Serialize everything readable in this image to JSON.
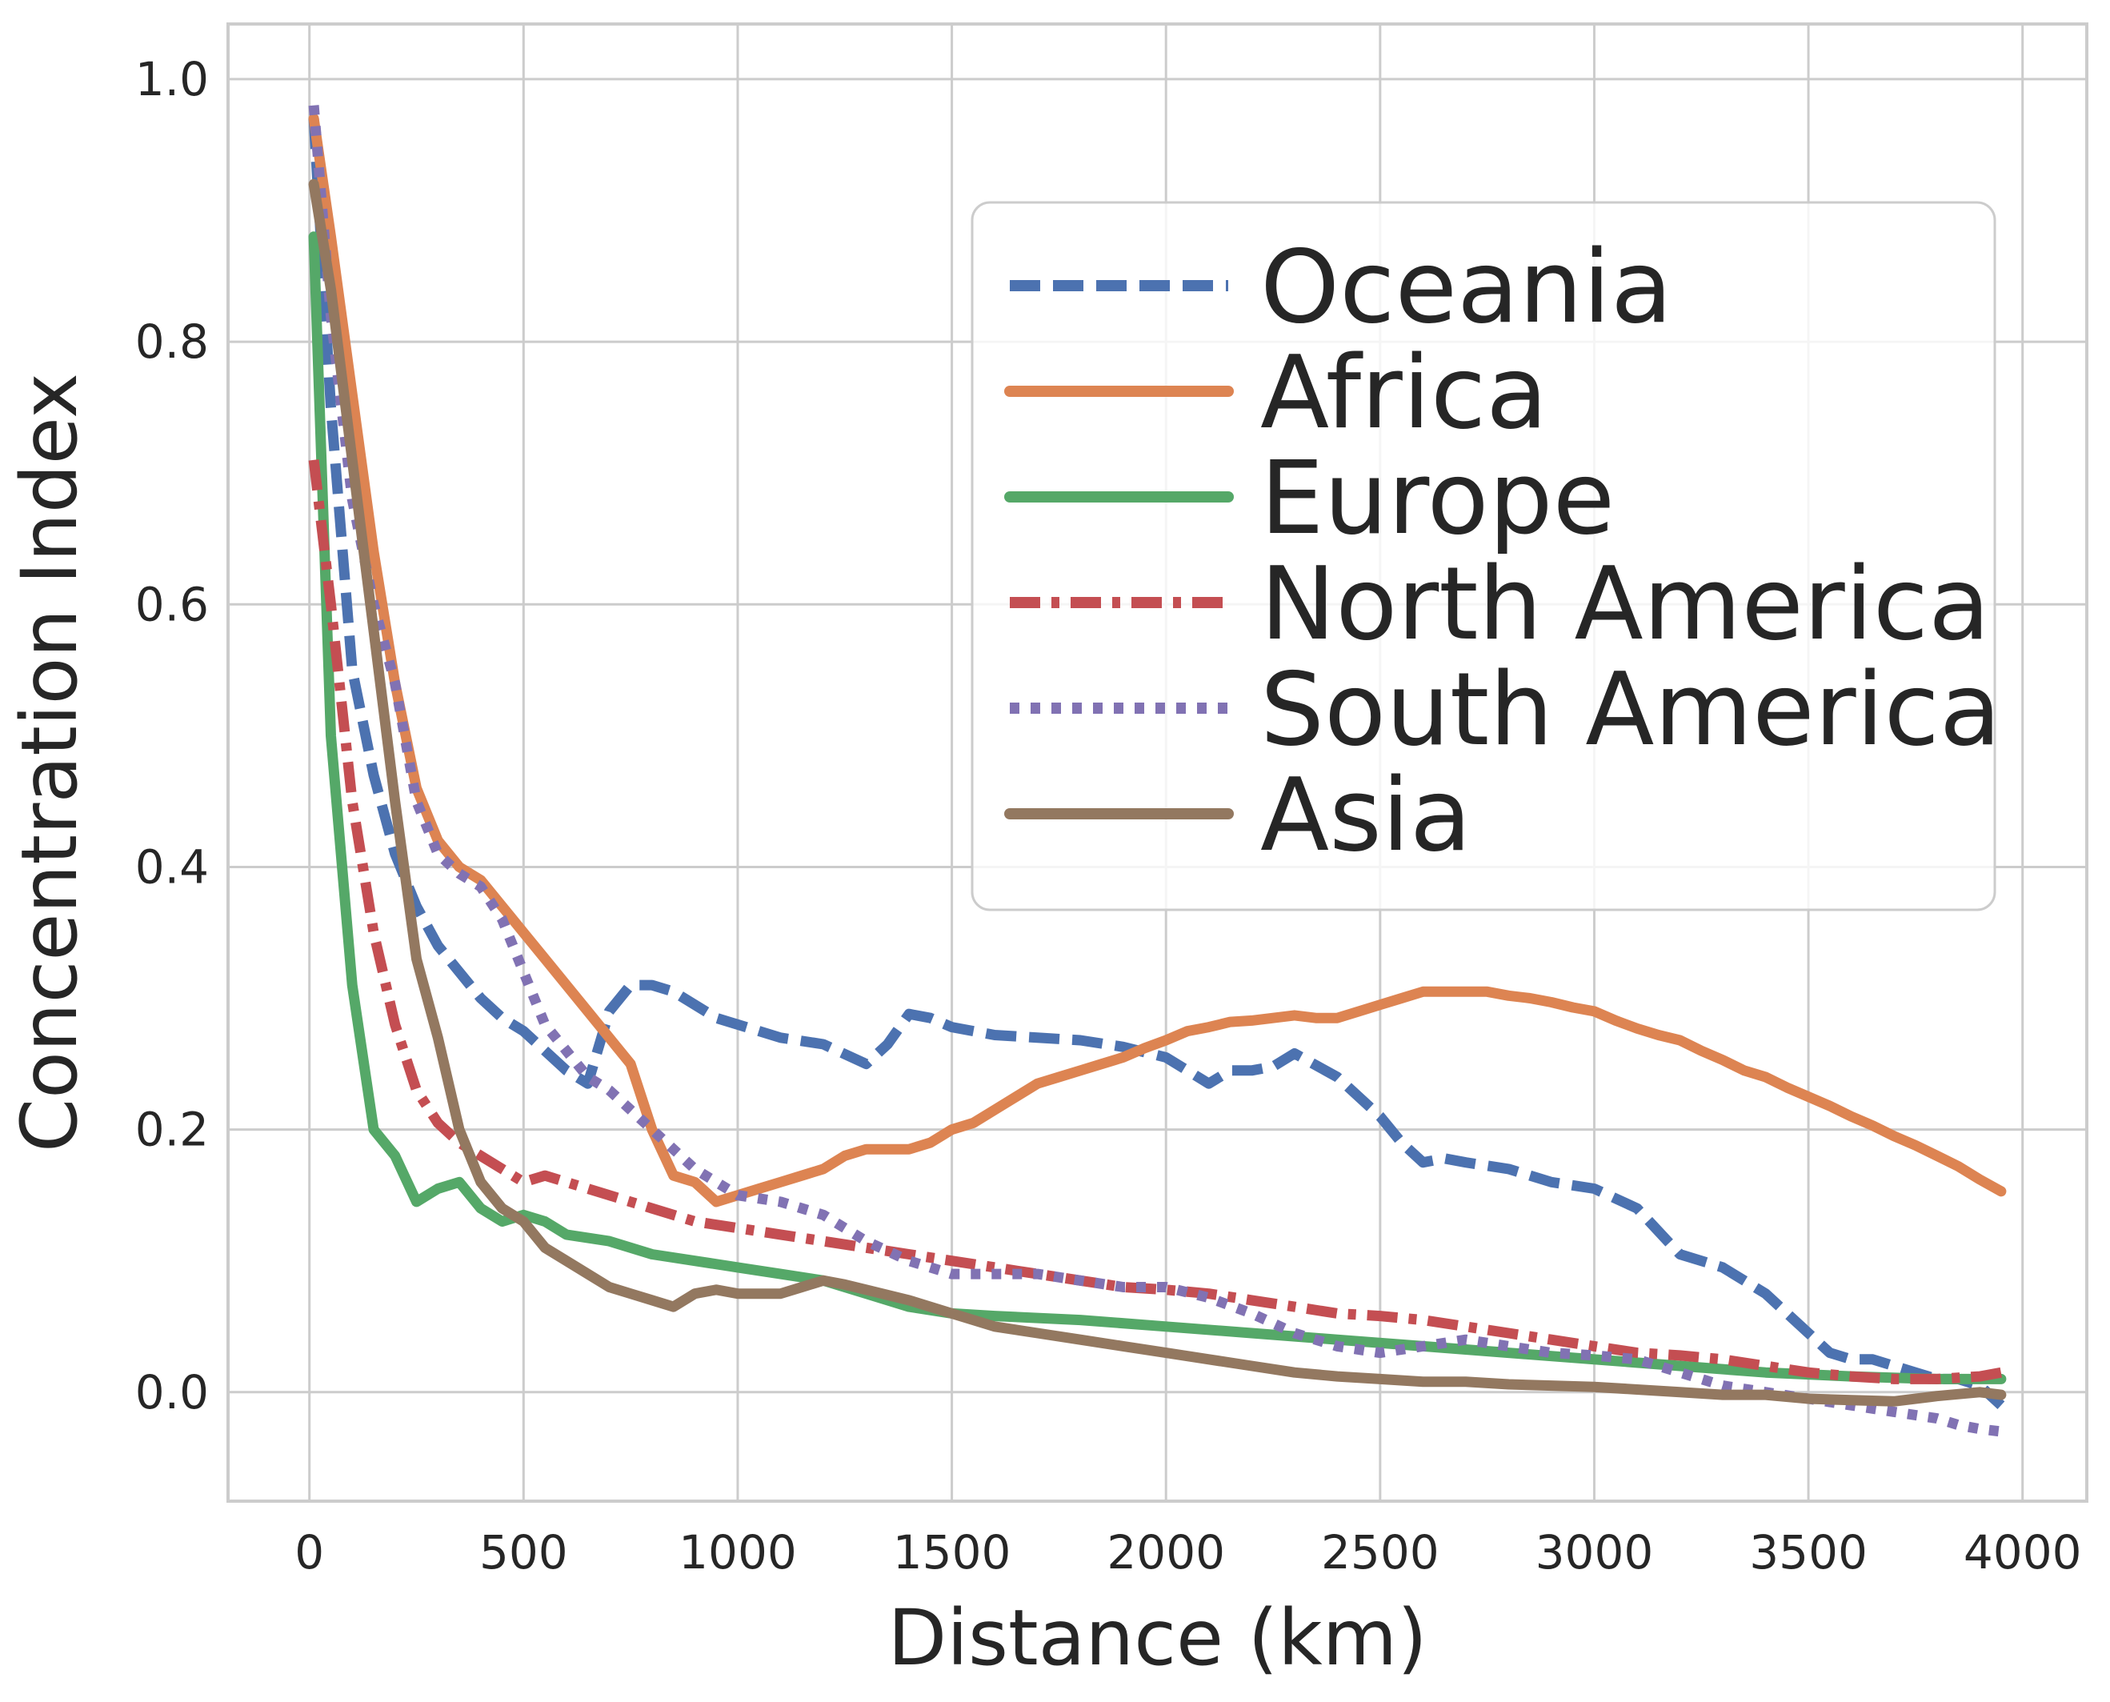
{
  "chart_data": {
    "type": "line",
    "title": "",
    "xlabel": "Distance (km)",
    "ylabel": "Concentration Index",
    "xlim": [
      -190,
      4150
    ],
    "ylim": [
      -0.083,
      1.042
    ],
    "xticks": [
      0,
      500,
      1000,
      1500,
      2000,
      2500,
      3000,
      3500,
      4000
    ],
    "yticks": [
      0.0,
      0.2,
      0.4,
      0.6,
      0.8,
      1.0
    ],
    "grid": true,
    "legend_position": "upper-right",
    "series": [
      {
        "name": "Oceania",
        "color": "#4c72b0",
        "dash": "dashed",
        "x": [
          10,
          50,
          100,
          150,
          200,
          250,
          300,
          350,
          400,
          450,
          500,
          550,
          600,
          650,
          700,
          750,
          800,
          850,
          900,
          950,
          1000,
          1100,
          1200,
          1300,
          1350,
          1400,
          1450,
          1500,
          1600,
          1700,
          1800,
          1900,
          2000,
          2050,
          2100,
          2150,
          2200,
          2250,
          2300,
          2400,
          2500,
          2550,
          2600,
          2650,
          2700,
          2800,
          2900,
          3000,
          3100,
          3200,
          3300,
          3400,
          3500,
          3550,
          3600,
          3650,
          3700,
          3750,
          3800,
          3850,
          3900,
          3950
        ],
        "y": [
          0.97,
          0.75,
          0.55,
          0.47,
          0.41,
          0.37,
          0.34,
          0.32,
          0.3,
          0.285,
          0.275,
          0.26,
          0.245,
          0.235,
          0.29,
          0.31,
          0.31,
          0.305,
          0.295,
          0.285,
          0.28,
          0.27,
          0.265,
          0.25,
          0.265,
          0.288,
          0.285,
          0.278,
          0.272,
          0.27,
          0.268,
          0.263,
          0.255,
          0.245,
          0.235,
          0.245,
          0.245,
          0.248,
          0.258,
          0.24,
          0.21,
          0.19,
          0.175,
          0.178,
          0.175,
          0.17,
          0.16,
          0.155,
          0.14,
          0.105,
          0.095,
          0.075,
          0.045,
          0.03,
          0.025,
          0.025,
          0.02,
          0.015,
          0.01,
          0.01,
          0.005,
          -0.01
        ]
      },
      {
        "name": "Africa",
        "color": "#dd8452",
        "dash": "solid",
        "x": [
          10,
          50,
          100,
          150,
          200,
          250,
          300,
          350,
          400,
          450,
          500,
          550,
          600,
          650,
          700,
          750,
          800,
          850,
          900,
          950,
          1000,
          1050,
          1100,
          1150,
          1200,
          1250,
          1300,
          1350,
          1400,
          1450,
          1500,
          1550,
          1600,
          1650,
          1700,
          1750,
          1800,
          1850,
          1900,
          1950,
          2000,
          2050,
          2100,
          2150,
          2200,
          2250,
          2300,
          2350,
          2400,
          2450,
          2500,
          2550,
          2600,
          2650,
          2700,
          2750,
          2800,
          2850,
          2900,
          2950,
          3000,
          3050,
          3100,
          3150,
          3200,
          3250,
          3300,
          3350,
          3400,
          3450,
          3500,
          3550,
          3600,
          3650,
          3700,
          3750,
          3800,
          3850,
          3900,
          3950
        ],
        "y": [
          0.97,
          0.88,
          0.76,
          0.64,
          0.54,
          0.46,
          0.42,
          0.4,
          0.39,
          0.37,
          0.35,
          0.33,
          0.31,
          0.29,
          0.27,
          0.25,
          0.2,
          0.165,
          0.16,
          0.145,
          0.15,
          0.155,
          0.16,
          0.165,
          0.17,
          0.18,
          0.185,
          0.185,
          0.185,
          0.19,
          0.2,
          0.205,
          0.215,
          0.225,
          0.235,
          0.24,
          0.245,
          0.25,
          0.255,
          0.262,
          0.268,
          0.275,
          0.278,
          0.282,
          0.283,
          0.285,
          0.287,
          0.285,
          0.285,
          0.29,
          0.295,
          0.3,
          0.305,
          0.305,
          0.305,
          0.305,
          0.302,
          0.3,
          0.297,
          0.293,
          0.29,
          0.283,
          0.277,
          0.272,
          0.268,
          0.26,
          0.253,
          0.245,
          0.24,
          0.232,
          0.225,
          0.218,
          0.21,
          0.203,
          0.195,
          0.188,
          0.18,
          0.172,
          0.162,
          0.153
        ]
      },
      {
        "name": "Europe",
        "color": "#55a868",
        "dash": "solid",
        "x": [
          10,
          50,
          100,
          150,
          200,
          250,
          300,
          350,
          400,
          450,
          500,
          550,
          600,
          700,
          800,
          900,
          1000,
          1100,
          1200,
          1300,
          1400,
          1500,
          1600,
          1800,
          2000,
          2200,
          2400,
          2600,
          2800,
          3000,
          3200,
          3400,
          3600,
          3800,
          3950
        ],
        "y": [
          0.88,
          0.5,
          0.31,
          0.2,
          0.18,
          0.145,
          0.155,
          0.16,
          0.14,
          0.13,
          0.135,
          0.13,
          0.12,
          0.115,
          0.105,
          0.1,
          0.095,
          0.09,
          0.085,
          0.075,
          0.065,
          0.06,
          0.058,
          0.055,
          0.05,
          0.045,
          0.04,
          0.035,
          0.03,
          0.025,
          0.02,
          0.015,
          0.012,
          0.01,
          0.01
        ]
      },
      {
        "name": "North America",
        "color": "#c44e52",
        "dash": "dashdot",
        "x": [
          10,
          50,
          100,
          150,
          200,
          250,
          300,
          350,
          400,
          450,
          500,
          550,
          600,
          650,
          700,
          800,
          900,
          1000,
          1100,
          1200,
          1300,
          1400,
          1500,
          1600,
          1700,
          1800,
          1900,
          2000,
          2100,
          2200,
          2300,
          2400,
          2500,
          2600,
          2700,
          2800,
          2900,
          3000,
          3100,
          3200,
          3300,
          3400,
          3500,
          3600,
          3700,
          3800,
          3900,
          3950
        ],
        "y": [
          0.71,
          0.6,
          0.45,
          0.35,
          0.28,
          0.23,
          0.205,
          0.19,
          0.18,
          0.17,
          0.16,
          0.165,
          0.16,
          0.155,
          0.15,
          0.14,
          0.13,
          0.125,
          0.12,
          0.115,
          0.11,
          0.105,
          0.1,
          0.095,
          0.09,
          0.085,
          0.08,
          0.078,
          0.075,
          0.07,
          0.065,
          0.06,
          0.058,
          0.055,
          0.05,
          0.045,
          0.04,
          0.035,
          0.03,
          0.028,
          0.025,
          0.02,
          0.015,
          0.012,
          0.01,
          0.01,
          0.012,
          0.015
        ]
      },
      {
        "name": "South America",
        "color": "#8172b3",
        "dash": "dotted",
        "x": [
          10,
          50,
          100,
          150,
          200,
          250,
          300,
          350,
          400,
          450,
          500,
          550,
          600,
          650,
          700,
          800,
          900,
          1000,
          1100,
          1200,
          1300,
          1400,
          1500,
          1600,
          1700,
          1800,
          1900,
          2000,
          2100,
          2200,
          2300,
          2400,
          2500,
          2600,
          2700,
          2800,
          2900,
          3000,
          3100,
          3200,
          3300,
          3400,
          3500,
          3600,
          3700,
          3800,
          3850,
          3900,
          3950
        ],
        "y": [
          0.98,
          0.82,
          0.68,
          0.6,
          0.54,
          0.45,
          0.41,
          0.395,
          0.385,
          0.36,
          0.32,
          0.28,
          0.26,
          0.24,
          0.23,
          0.2,
          0.17,
          0.15,
          0.145,
          0.135,
          0.115,
          0.1,
          0.09,
          0.09,
          0.09,
          0.085,
          0.08,
          0.08,
          0.072,
          0.06,
          0.045,
          0.035,
          0.03,
          0.035,
          0.04,
          0.035,
          0.03,
          0.028,
          0.025,
          0.015,
          0.005,
          0.0,
          -0.005,
          -0.01,
          -0.015,
          -0.02,
          -0.025,
          -0.028,
          -0.03
        ]
      },
      {
        "name": "Asia",
        "color": "#937860",
        "dash": "solid",
        "x": [
          10,
          50,
          100,
          150,
          200,
          250,
          300,
          350,
          400,
          450,
          500,
          550,
          600,
          650,
          700,
          750,
          800,
          850,
          900,
          950,
          1000,
          1100,
          1150,
          1200,
          1250,
          1300,
          1400,
          1500,
          1600,
          1700,
          1800,
          1900,
          2000,
          2100,
          2200,
          2300,
          2400,
          2500,
          2600,
          2700,
          2800,
          2900,
          3000,
          3100,
          3200,
          3300,
          3400,
          3500,
          3600,
          3700,
          3800,
          3900,
          3950
        ],
        "y": [
          0.92,
          0.84,
          0.71,
          0.58,
          0.45,
          0.33,
          0.27,
          0.2,
          0.16,
          0.14,
          0.13,
          0.11,
          0.1,
          0.09,
          0.08,
          0.075,
          0.07,
          0.065,
          0.075,
          0.078,
          0.075,
          0.075,
          0.08,
          0.085,
          0.082,
          0.078,
          0.07,
          0.06,
          0.05,
          0.045,
          0.04,
          0.035,
          0.03,
          0.025,
          0.02,
          0.015,
          0.012,
          0.01,
          0.008,
          0.008,
          0.006,
          0.005,
          0.004,
          0.002,
          0.0,
          -0.002,
          -0.002,
          -0.005,
          -0.006,
          -0.007,
          -0.003,
          0.0,
          -0.002
        ]
      }
    ]
  }
}
